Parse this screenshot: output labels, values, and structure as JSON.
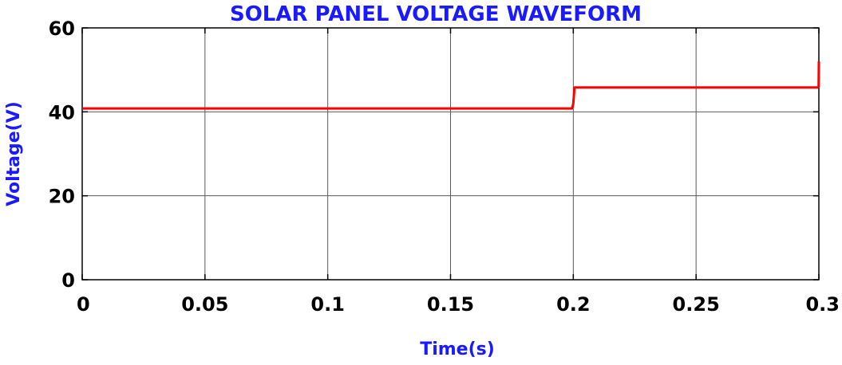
{
  "chart_data": {
    "type": "line",
    "title": "SOLAR PANEL VOLTAGE WAVEFORM",
    "xlabel": "Time(s)",
    "ylabel": "Voltage(V)",
    "xlim": [
      0,
      0.3
    ],
    "ylim": [
      0,
      60
    ],
    "xticks": [
      0,
      0.05,
      0.1,
      0.15,
      0.2,
      0.25,
      0.3
    ],
    "xtick_labels": [
      "0",
      "0.05",
      "0.1",
      "0.15",
      "0.2",
      "0.25",
      "0.3"
    ],
    "yticks": [
      0,
      20,
      40,
      60
    ],
    "ytick_labels": [
      "0",
      "20",
      "40",
      "60"
    ],
    "grid": true,
    "series": [
      {
        "color": "#ff0000",
        "x": [
          0,
          0.1995,
          0.2,
          0.2005,
          0.2995,
          0.2999,
          0.3
        ],
        "y": [
          40.8,
          40.8,
          42,
          45.8,
          45.8,
          46,
          52
        ]
      }
    ]
  }
}
